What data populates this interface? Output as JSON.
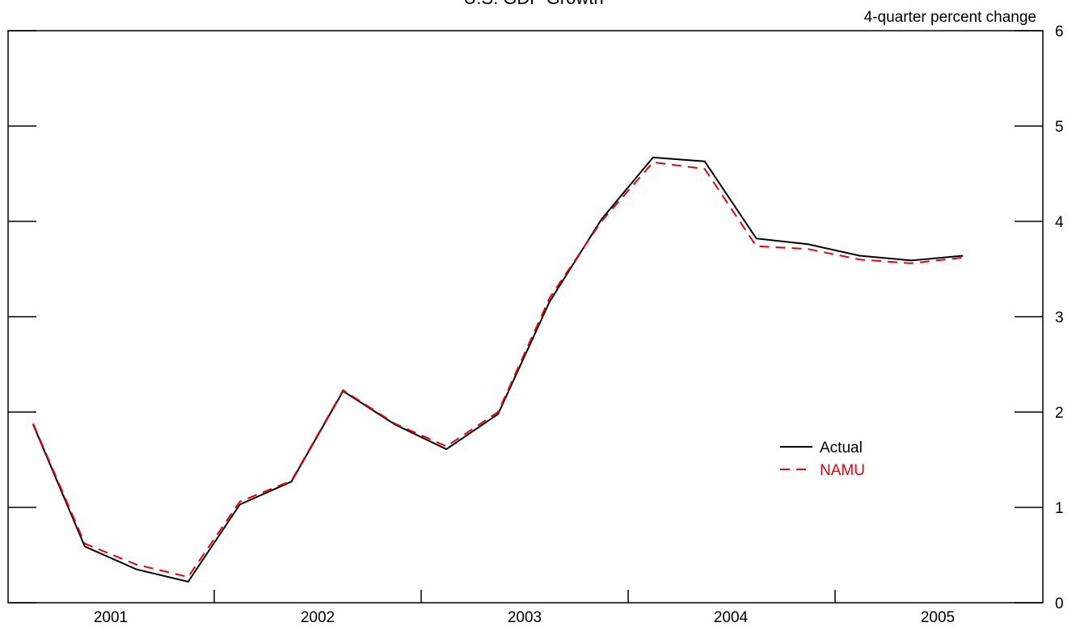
{
  "chart_data": {
    "type": "line",
    "title": "U.S. GDP Growth",
    "ylabel": "4-quarter percent change",
    "xlabel": "",
    "ylim": [
      0,
      6
    ],
    "yticks": [
      0,
      1,
      2,
      3,
      4,
      5,
      6
    ],
    "x_years": [
      "2001",
      "2002",
      "2003",
      "2004",
      "2005"
    ],
    "x_quarters": [
      "2000Q4",
      "2001Q1",
      "2001Q2",
      "2001Q3",
      "2001Q4",
      "2002Q1",
      "2002Q2",
      "2002Q3",
      "2002Q4",
      "2003Q1",
      "2003Q2",
      "2003Q3",
      "2003Q4",
      "2004Q1",
      "2004Q2",
      "2004Q3",
      "2004Q4",
      "2005Q1",
      "2005Q2"
    ],
    "grid": false,
    "legend_position": "center-right",
    "series": [
      {
        "name": "Actual",
        "color": "#000000",
        "style": "solid",
        "values": [
          1.87,
          0.59,
          0.35,
          0.22,
          1.03,
          1.27,
          2.22,
          1.87,
          1.61,
          1.98,
          3.16,
          4.02,
          4.67,
          4.63,
          3.82,
          3.76,
          3.64,
          3.59,
          3.64
        ]
      },
      {
        "name": "NAMU",
        "color": "#e8000d",
        "style": "dashed",
        "values": [
          1.88,
          0.62,
          0.4,
          0.27,
          1.06,
          1.28,
          2.23,
          1.88,
          1.64,
          2.0,
          3.2,
          4.0,
          4.62,
          4.55,
          3.74,
          3.71,
          3.6,
          3.56,
          3.62
        ]
      }
    ]
  }
}
